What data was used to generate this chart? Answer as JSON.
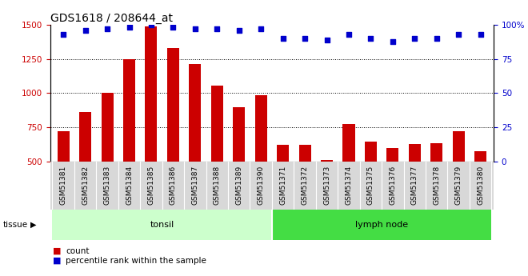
{
  "title": "GDS1618 / 208644_at",
  "categories": [
    "GSM51381",
    "GSM51382",
    "GSM51383",
    "GSM51384",
    "GSM51385",
    "GSM51386",
    "GSM51387",
    "GSM51388",
    "GSM51389",
    "GSM51390",
    "GSM51371",
    "GSM51372",
    "GSM51373",
    "GSM51374",
    "GSM51375",
    "GSM51376",
    "GSM51377",
    "GSM51378",
    "GSM51379",
    "GSM51380"
  ],
  "counts": [
    720,
    860,
    1005,
    1250,
    1490,
    1330,
    1215,
    1055,
    895,
    985,
    620,
    620,
    510,
    775,
    645,
    600,
    630,
    635,
    720,
    575
  ],
  "percentiles": [
    93,
    96,
    97,
    98,
    100,
    98,
    97,
    97,
    96,
    97,
    90,
    90,
    89,
    93,
    90,
    88,
    90,
    90,
    93,
    93
  ],
  "bar_color": "#cc0000",
  "dot_color": "#0000cc",
  "ylim_left": [
    500,
    1500
  ],
  "ylim_right": [
    0,
    100
  ],
  "yticks_left": [
    500,
    750,
    1000,
    1250,
    1500
  ],
  "yticks_right": [
    0,
    25,
    50,
    75,
    100
  ],
  "gridlines": [
    750,
    1000,
    1250
  ],
  "tonsil_count": 10,
  "lymph_count": 10,
  "tissue_label": "tissue",
  "tonsil_label": "tonsil",
  "lymph_label": "lymph node",
  "legend_count_label": "count",
  "legend_pct_label": "percentile rank within the sample",
  "tonsil_color": "#ccffcc",
  "lymph_color": "#44dd44",
  "xticklabel_bg": "#d8d8d8",
  "title_fontsize": 10,
  "tick_fontsize": 6.5,
  "bar_width": 0.55
}
